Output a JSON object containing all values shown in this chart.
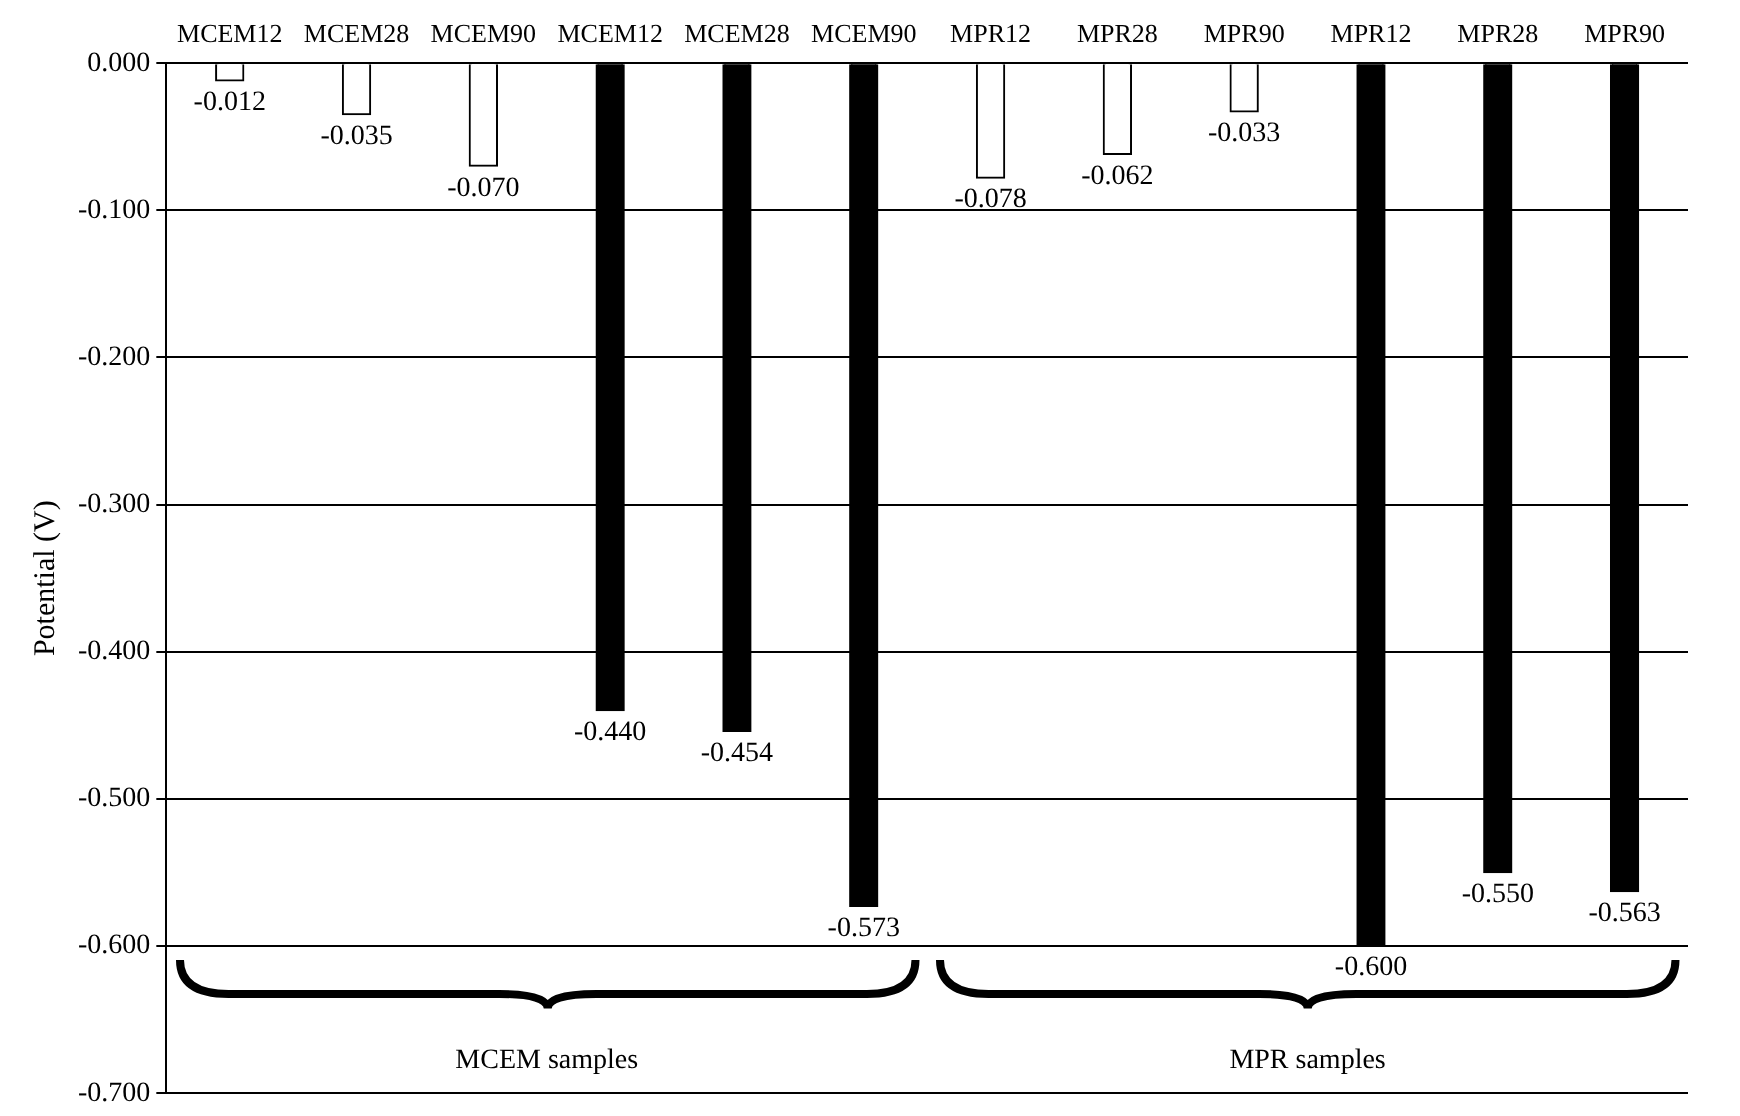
{
  "chart_data": {
    "type": "bar",
    "ylabel": "Potential (V)",
    "categories": [
      "MCEM12",
      "MCEM28",
      "MCEM90",
      "MCEM12",
      "MCEM28",
      "MCEM90",
      "MPR12",
      "MPR28",
      "MPR90",
      "MPR12",
      "MPR28",
      "MPR90"
    ],
    "values": [
      -0.012,
      -0.035,
      -0.07,
      -0.44,
      -0.454,
      -0.573,
      -0.078,
      -0.062,
      -0.033,
      -0.6,
      -0.55,
      -0.563
    ],
    "value_labels": [
      "-0.012",
      "-0.035",
      "-0.070",
      "-0.440",
      "-0.454",
      "-0.573",
      "-0.078",
      "-0.062",
      "-0.033",
      "-0.600",
      "-0.550",
      "-0.563"
    ],
    "colors": [
      "#ffffff",
      "#ffffff",
      "#ffffff",
      "#000000",
      "#000000",
      "#000000",
      "#ffffff",
      "#ffffff",
      "#ffffff",
      "#000000",
      "#000000",
      "#000000"
    ],
    "ylim": [
      -0.7,
      0
    ],
    "yticks": [
      {
        "value": 0,
        "label": "0.000"
      },
      {
        "value": -0.1,
        "label": "-0.100"
      },
      {
        "value": -0.2,
        "label": "-0.200"
      },
      {
        "value": -0.3,
        "label": "-0.300"
      },
      {
        "value": -0.4,
        "label": "-0.400"
      },
      {
        "value": -0.5,
        "label": "-0.500"
      },
      {
        "value": -0.6,
        "label": "-0.600"
      },
      {
        "value": -0.7,
        "label": "-0.700"
      }
    ],
    "grid": "y",
    "legend": false,
    "annotations": [
      "MCEM samples",
      "MPR samples"
    ]
  }
}
